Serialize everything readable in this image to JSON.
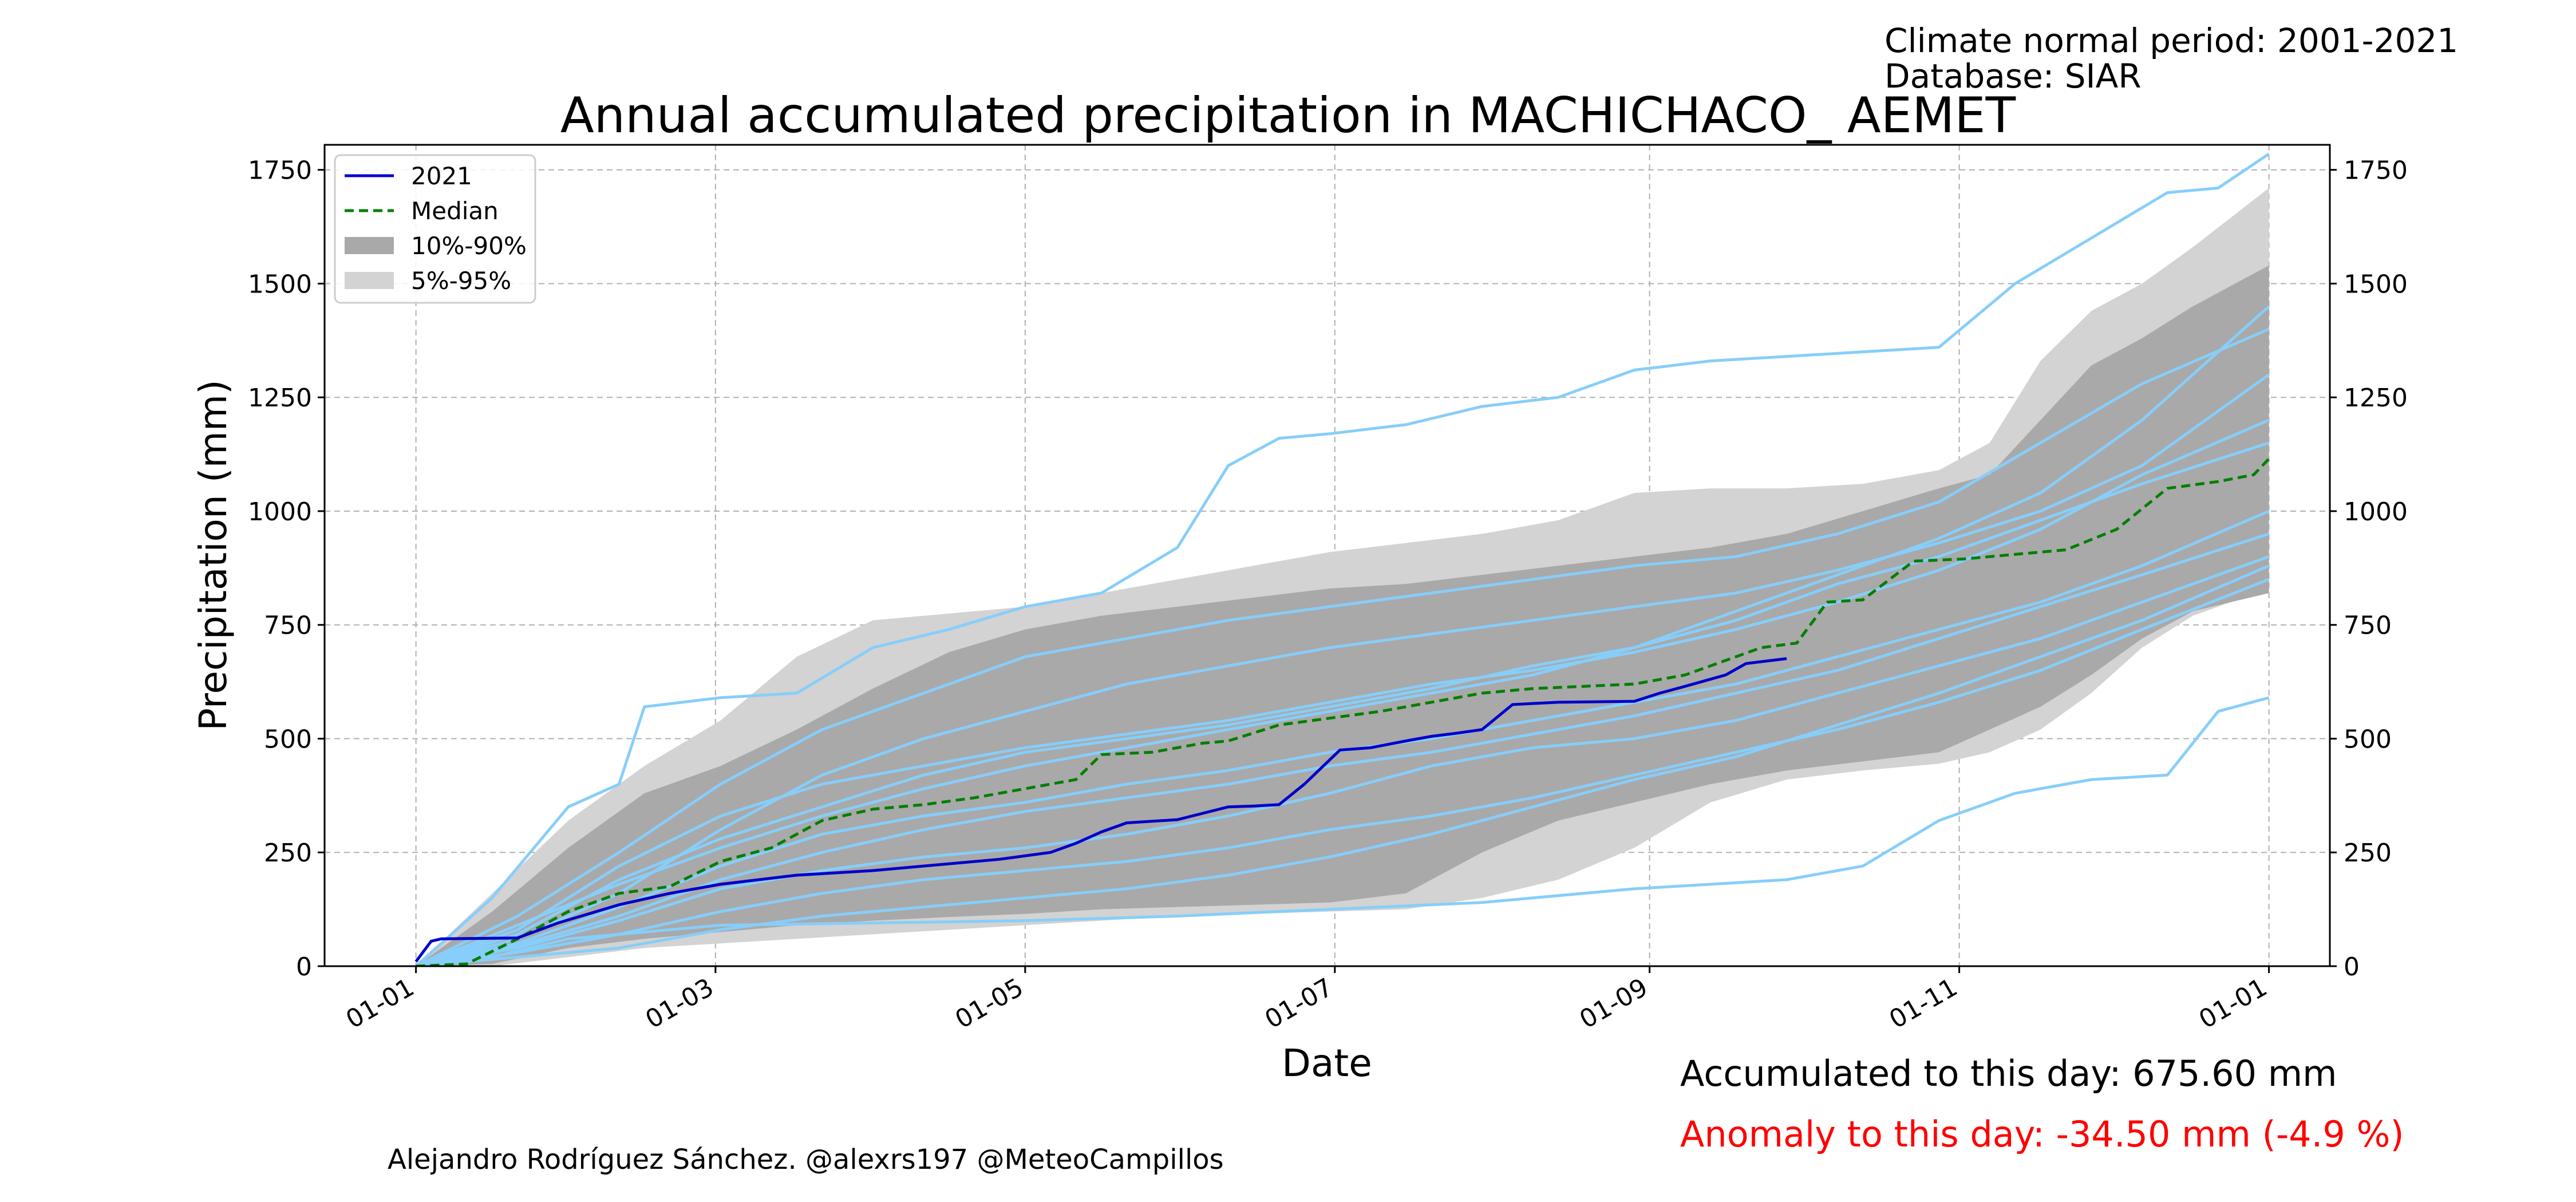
{
  "header": {
    "climate_period": "Climate normal period: 2001-2021",
    "database": "Database: SIAR"
  },
  "footer": {
    "accumulated": "Accumulated to this day: 675.60 mm",
    "anomaly": "Anomaly to this day: -34.50 mm (-4.9 %)",
    "credit": "Alejandro Rodríguez Sánchez. @alexrs197 @MeteoCampillos"
  },
  "colors": {
    "current_year": "#0000cc",
    "median": "#007f00",
    "band_10_90": "#a9a9a9",
    "band_5_95": "#d3d3d3",
    "individual_years": "#87cefa",
    "anomaly_text": "#ff0000",
    "grid": "#b0b0b0"
  },
  "chart_data": {
    "type": "line",
    "title": "Annual accumulated precipitation in MACHICHACO_ AEMET",
    "xlabel": "Date",
    "ylabel": "Precipitation (mm)",
    "x_ticks": [
      "01-01",
      "01-03",
      "01-05",
      "01-07",
      "01-09",
      "01-11",
      "01-01"
    ],
    "x_tick_days": [
      0,
      59,
      120,
      181,
      243,
      304,
      365
    ],
    "xlim": [
      -18,
      377
    ],
    "ylim": [
      0,
      1805
    ],
    "y_ticks": [
      0,
      250,
      500,
      750,
      1000,
      1250,
      1500,
      1750
    ],
    "grid": true,
    "legend_position": "top-left",
    "legend": [
      "2021",
      "Median",
      "10%-90%",
      "5%-95%"
    ],
    "series": [
      {
        "name": "2021",
        "style": "solid",
        "x": [
          0,
          3,
          5,
          20,
          28,
          40,
          50,
          60,
          75,
          90,
          105,
          115,
          125,
          130,
          135,
          140,
          150,
          160,
          165,
          170,
          175,
          182,
          188,
          195,
          200,
          205,
          210,
          216,
          225,
          240,
          245,
          250,
          258,
          262,
          270
        ],
        "y": [
          10,
          55,
          60,
          62,
          95,
          135,
          160,
          180,
          200,
          210,
          225,
          235,
          250,
          270,
          295,
          315,
          322,
          350,
          352,
          355,
          400,
          475,
          480,
          495,
          505,
          512,
          520,
          575,
          580,
          582,
          600,
          615,
          640,
          665,
          676
        ]
      },
      {
        "name": "Median",
        "style": "dashed",
        "x": [
          0,
          10,
          20,
          30,
          40,
          50,
          60,
          70,
          80,
          90,
          100,
          110,
          120,
          130,
          135,
          145,
          155,
          160,
          170,
          180,
          190,
          200,
          210,
          220,
          230,
          240,
          250,
          255,
          265,
          272,
          278,
          285,
          295,
          305,
          315,
          325,
          335,
          345,
          355,
          362,
          365
        ],
        "y": [
          0,
          5,
          60,
          120,
          160,
          175,
          230,
          260,
          320,
          345,
          355,
          370,
          390,
          410,
          465,
          470,
          490,
          495,
          530,
          545,
          560,
          580,
          600,
          610,
          615,
          620,
          640,
          660,
          700,
          710,
          800,
          805,
          890,
          895,
          905,
          915,
          960,
          1050,
          1065,
          1080,
          1115
        ]
      }
    ],
    "band_10_90": {
      "x": [
        0,
        15,
        30,
        45,
        60,
        75,
        90,
        105,
        120,
        135,
        150,
        165,
        180,
        195,
        210,
        225,
        240,
        255,
        270,
        285,
        300,
        310,
        320,
        330,
        340,
        350,
        365
      ],
      "lower": [
        0,
        5,
        40,
        60,
        75,
        90,
        100,
        108,
        115,
        125,
        130,
        135,
        140,
        160,
        250,
        320,
        360,
        400,
        430,
        450,
        470,
        520,
        570,
        640,
        720,
        780,
        820
      ],
      "upper": [
        0,
        120,
        260,
        380,
        440,
        520,
        610,
        690,
        740,
        770,
        790,
        810,
        830,
        840,
        860,
        880,
        900,
        920,
        950,
        1000,
        1050,
        1080,
        1200,
        1320,
        1380,
        1450,
        1540
      ]
    },
    "band_5_95": {
      "x": [
        0,
        15,
        30,
        45,
        60,
        75,
        90,
        105,
        120,
        135,
        150,
        165,
        180,
        195,
        210,
        225,
        240,
        255,
        270,
        285,
        300,
        310,
        320,
        330,
        340,
        350,
        365
      ],
      "lower": [
        0,
        0,
        20,
        40,
        50,
        60,
        70,
        80,
        90,
        100,
        110,
        115,
        120,
        125,
        150,
        190,
        260,
        360,
        410,
        430,
        445,
        470,
        520,
        600,
        700,
        770,
        830
      ],
      "upper": [
        0,
        160,
        320,
        440,
        540,
        680,
        760,
        775,
        790,
        820,
        850,
        880,
        910,
        930,
        950,
        980,
        1040,
        1050,
        1050,
        1060,
        1090,
        1150,
        1330,
        1440,
        1500,
        1580,
        1710
      ]
    },
    "individual_years": [
      {
        "x": [
          0,
          15,
          30,
          40,
          45,
          60,
          75,
          90,
          105,
          120,
          135,
          150,
          160,
          170,
          180,
          195,
          210,
          225,
          240,
          255,
          270,
          285,
          300,
          315,
          330,
          345,
          355,
          365
        ],
        "y": [
          0,
          150,
          350,
          400,
          570,
          590,
          600,
          700,
          740,
          790,
          820,
          920,
          1100,
          1160,
          1170,
          1190,
          1230,
          1250,
          1310,
          1330,
          1340,
          1350,
          1360,
          1500,
          1600,
          1700,
          1710,
          1785
        ]
      },
      {
        "x": [
          0,
          15,
          30,
          60,
          90,
          120,
          150,
          180,
          210,
          240,
          255,
          270,
          285,
          300,
          315,
          330,
          345,
          355,
          365
        ],
        "y": [
          0,
          20,
          60,
          90,
          95,
          100,
          110,
          125,
          140,
          170,
          180,
          190,
          220,
          320,
          380,
          410,
          420,
          560,
          590
        ]
      },
      {
        "x": [
          0,
          20,
          40,
          60,
          80,
          100,
          120,
          140,
          160,
          180,
          200,
          220,
          240,
          260,
          280,
          300,
          320,
          340,
          365
        ],
        "y": [
          0,
          90,
          180,
          260,
          330,
          390,
          440,
          480,
          520,
          560,
          600,
          640,
          700,
          780,
          860,
          940,
          1040,
          1200,
          1450
        ]
      },
      {
        "x": [
          0,
          20,
          40,
          60,
          80,
          100,
          120,
          140,
          160,
          180,
          200,
          220,
          240,
          260,
          280,
          300,
          320,
          340,
          365
        ],
        "y": [
          0,
          40,
          100,
          170,
          210,
          240,
          260,
          290,
          330,
          380,
          440,
          480,
          500,
          540,
          600,
          660,
          720,
          800,
          900
        ]
      },
      {
        "x": [
          0,
          20,
          40,
          60,
          80,
          100,
          120,
          140,
          160,
          180,
          200,
          220,
          240,
          260,
          280,
          300,
          320,
          340,
          365
        ],
        "y": [
          0,
          60,
          160,
          300,
          420,
          500,
          560,
          620,
          660,
          700,
          730,
          760,
          790,
          820,
          870,
          930,
          1000,
          1100,
          1300
        ]
      },
      {
        "x": [
          0,
          20,
          40,
          60,
          80,
          100,
          120,
          140,
          160,
          180,
          200,
          220,
          240,
          260,
          280,
          300,
          320,
          340,
          365
        ],
        "y": [
          0,
          30,
          70,
          120,
          160,
          190,
          210,
          230,
          260,
          300,
          330,
          370,
          420,
          470,
          520,
          580,
          650,
          740,
          850
        ]
      },
      {
        "x": [
          0,
          20,
          40,
          60,
          80,
          100,
          120,
          140,
          160,
          180,
          200,
          220,
          240,
          260,
          280,
          300,
          320,
          340,
          365
        ],
        "y": [
          0,
          80,
          220,
          330,
          400,
          440,
          480,
          510,
          540,
          580,
          620,
          650,
          690,
          740,
          800,
          870,
          960,
          1080,
          1200
        ]
      },
      {
        "x": [
          0,
          20,
          40,
          60,
          80,
          100,
          120,
          140,
          160,
          180,
          200,
          220,
          240,
          260,
          280,
          300,
          320,
          340,
          365
        ],
        "y": [
          0,
          50,
          130,
          220,
          290,
          330,
          360,
          400,
          430,
          470,
          500,
          540,
          580,
          620,
          680,
          740,
          800,
          880,
          1000
        ]
      },
      {
        "x": [
          0,
          20,
          40,
          60,
          80,
          100,
          120,
          140,
          160,
          180,
          200,
          220,
          240,
          260,
          280,
          300,
          320,
          340,
          365
        ],
        "y": [
          0,
          110,
          250,
          400,
          520,
          600,
          680,
          720,
          760,
          790,
          820,
          850,
          880,
          900,
          950,
          1020,
          1150,
          1280,
          1400
        ]
      },
      {
        "x": [
          0,
          20,
          40,
          60,
          80,
          100,
          120,
          140,
          160,
          180,
          200,
          220,
          240,
          260,
          280,
          300,
          320,
          340,
          365
        ],
        "y": [
          0,
          20,
          40,
          80,
          110,
          130,
          150,
          170,
          200,
          240,
          290,
          350,
          410,
          460,
          530,
          600,
          680,
          760,
          880
        ]
      },
      {
        "x": [
          0,
          20,
          40,
          60,
          80,
          100,
          120,
          140,
          160,
          180,
          200,
          220,
          240,
          260,
          280,
          300,
          320,
          340,
          365
        ],
        "y": [
          0,
          70,
          190,
          280,
          350,
          420,
          470,
          500,
          530,
          570,
          610,
          660,
          700,
          760,
          840,
          900,
          980,
          1060,
          1150
        ]
      },
      {
        "x": [
          0,
          20,
          40,
          60,
          80,
          100,
          120,
          140,
          160,
          180,
          200,
          220,
          240,
          260,
          280,
          300,
          320,
          340,
          365
        ],
        "y": [
          0,
          45,
          110,
          190,
          250,
          300,
          340,
          370,
          400,
          440,
          470,
          510,
          550,
          600,
          650,
          720,
          790,
          860,
          950
        ]
      }
    ]
  }
}
